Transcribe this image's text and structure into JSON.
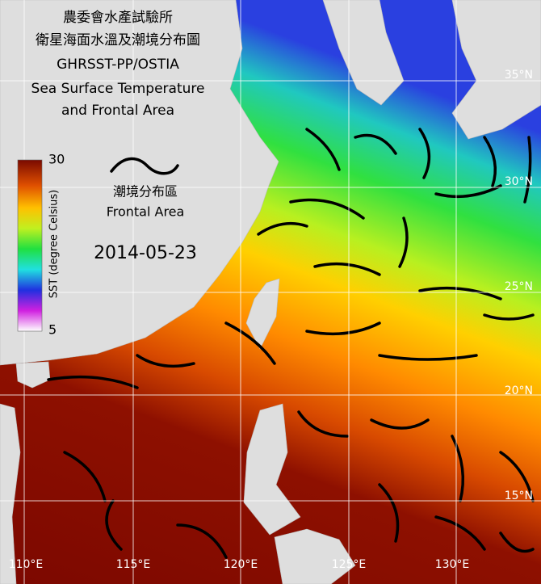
{
  "header": {
    "lines": [
      "農委會水產試驗所",
      "衛星海面水溫及潮境分布圖",
      "GHRSST-PP/OSTIA",
      "Sea Surface Temperature",
      "and Frontal Area"
    ]
  },
  "colorbar": {
    "max": 30,
    "min": 5,
    "label": "SST (degree Celsius)"
  },
  "legend": {
    "label_zh": "潮境分布區",
    "label_en": "Frontal Area"
  },
  "date": "2014-05-23",
  "lat_labels": [
    "35°N",
    "30°N",
    "25°N",
    "20°N",
    "15°N"
  ],
  "lon_labels": [
    "110°E",
    "115°E",
    "120°E",
    "125°E",
    "130°E"
  ]
}
